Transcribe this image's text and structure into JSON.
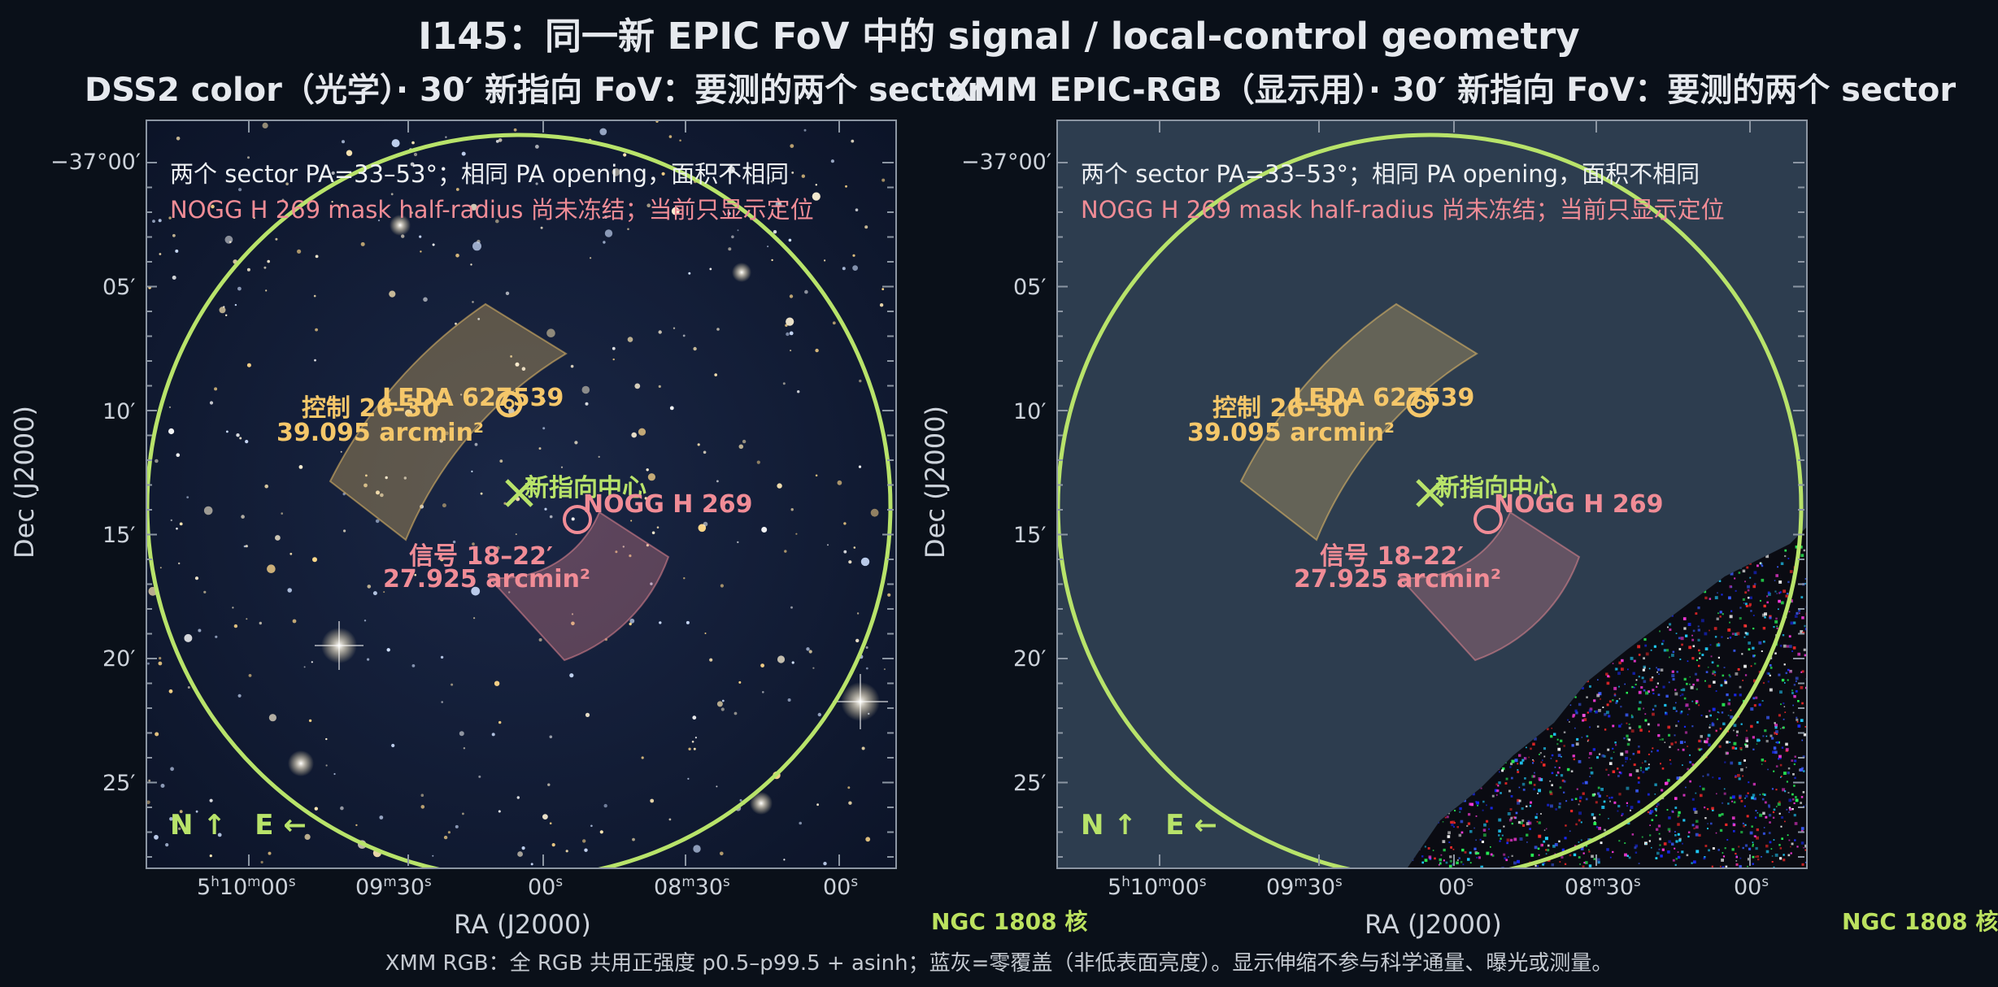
{
  "title": "I145：同一新 EPIC FoV 中的 signal / local-control geometry",
  "colors": {
    "fov": "#b8e36a",
    "control": "#f5c76a",
    "signal": "#f08c96",
    "bg": "#0a1019"
  },
  "panels": [
    {
      "subtitle": "DSS2 color（光学）· 30′ 新指向 FoV：要测的两个 sector",
      "note1": "两个 sector PA=33–53°；相同 PA opening，面积不相同",
      "note2": "NOGG H 269 mask half-radius 尚未冻结；当前只显示定位",
      "control_label1": "控制 26–30′",
      "control_label2": "39.095 arcmin²",
      "leda_label": "LEDA 627539",
      "center_label": "新指向中心",
      "nogg_label": "NOGG H 269",
      "signal_label1": "信号 18–22′",
      "signal_label2": "27.925 arcmin²",
      "compass": "N ↑   E ←",
      "core_label": "NGC 1808 核"
    },
    {
      "subtitle": "XMM EPIC-RGB（显示用）· 30′ 新指向 FoV：要测的两个 sector",
      "note1": "两个 sector PA=33–53°；相同 PA opening，面积不相同",
      "note2": "NOGG H 269 mask half-radius 尚未冻结；当前只显示定位",
      "control_label1": "控制 26–30′",
      "control_label2": "39.095 arcmin²",
      "leda_label": "LEDA 627539",
      "center_label": "新指向中心",
      "nogg_label": "NOGG H 269",
      "signal_label1": "信号 18–22′",
      "signal_label2": "27.925 arcmin²",
      "compass": "N ↑   E ←",
      "core_label": "NGC 1808 核"
    }
  ],
  "axes": {
    "xlabel": "RA (J2000)",
    "ylabel": "Dec (J2000)",
    "dec_ticks": [
      "−37°00′",
      "05′",
      "10′",
      "15′",
      "20′",
      "25′"
    ],
    "ra_ticks": [
      {
        "main": "5",
        "h": "h",
        "mid": "10",
        "m": "m",
        "tail": "00",
        "s": "s"
      },
      {
        "main": "09",
        "m": "m",
        "tail": "30",
        "s": "s"
      },
      {
        "main": "00",
        "s": "s"
      },
      {
        "main": "08",
        "m": "m",
        "tail": "30",
        "s": "s"
      },
      {
        "main": "00",
        "s": "s"
      }
    ]
  },
  "footer": "XMM RGB：全 RGB 共用正强度 p0.5–p99.5 + asinh；蓝灰=零覆盖（非低表面亮度）。显示伸缩不参与科学通量、曝光或测量。"
}
